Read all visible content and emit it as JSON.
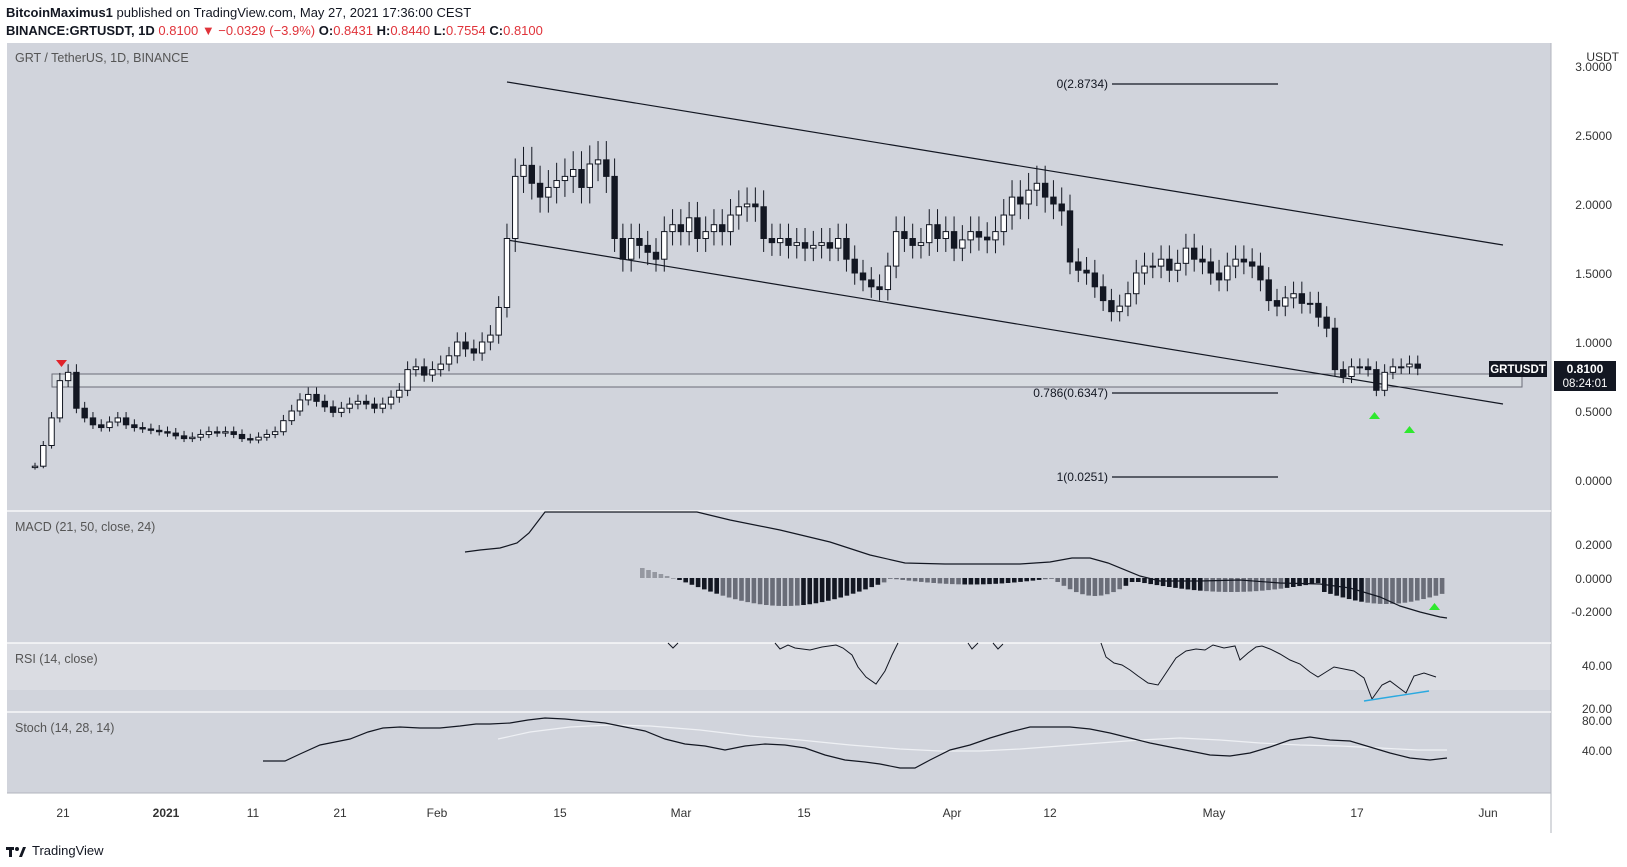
{
  "header": {
    "publisher": "BitcoinMaximus1",
    "published_text": "published on TradingView.com, May 27, 2021 17:36:00 CEST",
    "symbol": "BINANCE:GRTUSDT, 1D",
    "price": "0.8100",
    "change": "▼ −0.0329 (−3.9%)",
    "o_label": "O:",
    "o_val": "0.8431",
    "h_label": "H:",
    "h_val": "0.8440",
    "l_label": "L:",
    "l_val": "0.7554",
    "c_label": "C:",
    "c_val": "0.8100"
  },
  "panes": {
    "main_title": "GRT / TetherUS, 1D, BINANCE",
    "currency": "USDT",
    "macd_title": "MACD (21, 50, close, 24)",
    "rsi_title": "RSI (14, close)",
    "stoch_title": "Stoch (14, 28, 14)"
  },
  "price_badge": {
    "symbol": "GRTUSDT",
    "price": "0.8100",
    "countdown": "08:24:01"
  },
  "fib_labels": {
    "f0": "0(2.8734)",
    "f786": "0.786(0.6347)",
    "f1": "1(0.0251)"
  },
  "footer": {
    "brand": "TradingView"
  },
  "colors": {
    "background": "#d1d4dc",
    "candle_up": "#ffffff",
    "candle_down": "#131722",
    "arrow_up": "#2ee82e",
    "arrow_down": "#e0222a",
    "rsi_trend": "#2aa9e0"
  },
  "chart_data": [
    {
      "type": "candlestick",
      "title": "GRT / TetherUS, 1D, BINANCE",
      "y_axis_ticks": [
        "0.0000",
        "0.5000",
        "1.0000",
        "1.5000",
        "2.0000",
        "2.5000",
        "3.0000"
      ],
      "x_axis_ticks": [
        "21",
        "2021",
        "11",
        "21",
        "Feb",
        "15",
        "Mar",
        "15",
        "Apr",
        "12",
        "May",
        "17",
        "Jun"
      ],
      "ylim": [
        -0.2,
        3.05
      ],
      "close_series": [
        0.1,
        0.25,
        0.45,
        0.72,
        0.78,
        0.52,
        0.45,
        0.4,
        0.38,
        0.42,
        0.45,
        0.4,
        0.38,
        0.37,
        0.36,
        0.35,
        0.34,
        0.32,
        0.3,
        0.31,
        0.33,
        0.35,
        0.34,
        0.35,
        0.33,
        0.3,
        0.29,
        0.31,
        0.33,
        0.35,
        0.43,
        0.5,
        0.58,
        0.62,
        0.57,
        0.53,
        0.49,
        0.52,
        0.55,
        0.57,
        0.55,
        0.52,
        0.55,
        0.6,
        0.65,
        0.8,
        0.82,
        0.76,
        0.8,
        0.84,
        0.9,
        1.0,
        0.95,
        0.92,
        1.0,
        1.05,
        1.25,
        1.75,
        2.2,
        2.28,
        2.15,
        2.05,
        2.12,
        2.17,
        2.2,
        2.25,
        2.12,
        2.29,
        2.32,
        2.2,
        1.75,
        1.6,
        1.75,
        1.7,
        1.65,
        1.6,
        1.8,
        1.85,
        1.8,
        1.9,
        1.75,
        1.8,
        1.85,
        1.8,
        1.92,
        1.98,
        2.0,
        1.98,
        1.75,
        1.72,
        1.75,
        1.7,
        1.72,
        1.68,
        1.7,
        1.72,
        1.68,
        1.75,
        1.6,
        1.5,
        1.45,
        1.4,
        1.38,
        1.55,
        1.8,
        1.75,
        1.7,
        1.72,
        1.85,
        1.75,
        1.8,
        1.68,
        1.74,
        1.8,
        1.76,
        1.74,
        1.8,
        1.92,
        2.05,
        2.0,
        2.1,
        2.15,
        2.05,
        2.0,
        1.95,
        1.58,
        1.52,
        1.5,
        1.4,
        1.3,
        1.22,
        1.26,
        1.35,
        1.5,
        1.55,
        1.55,
        1.6,
        1.52,
        1.57,
        1.68,
        1.6,
        1.58,
        1.5,
        1.45,
        1.55,
        1.6,
        1.58,
        1.55,
        1.45,
        1.3,
        1.26,
        1.32,
        1.35,
        1.28,
        1.28,
        1.18,
        1.1,
        0.8,
        0.75,
        0.82,
        0.82,
        0.8,
        0.65,
        0.78,
        0.82,
        0.82,
        0.84,
        0.81
      ],
      "annotations": [
        "0(2.8734)",
        "0.786(0.6347)",
        "1(0.0251)",
        "GRTUSDT 0.8100",
        "08:24:01"
      ]
    },
    {
      "type": "line+histogram",
      "title": "MACD (21, 50, close, 24)",
      "y_axis_ticks": [
        "-0.2000",
        "0.0000",
        "0.2000"
      ],
      "ylim": [
        -0.3,
        0.4
      ]
    },
    {
      "type": "line",
      "title": "RSI (14, close)",
      "y_axis_ticks": [
        "20.00",
        "40.00"
      ],
      "ylim": [
        15,
        60
      ]
    },
    {
      "type": "line",
      "title": "Stoch (14, 28, 14)",
      "y_axis_ticks": [
        "40.00",
        "80.00"
      ],
      "ylim": [
        0,
        85
      ]
    }
  ]
}
